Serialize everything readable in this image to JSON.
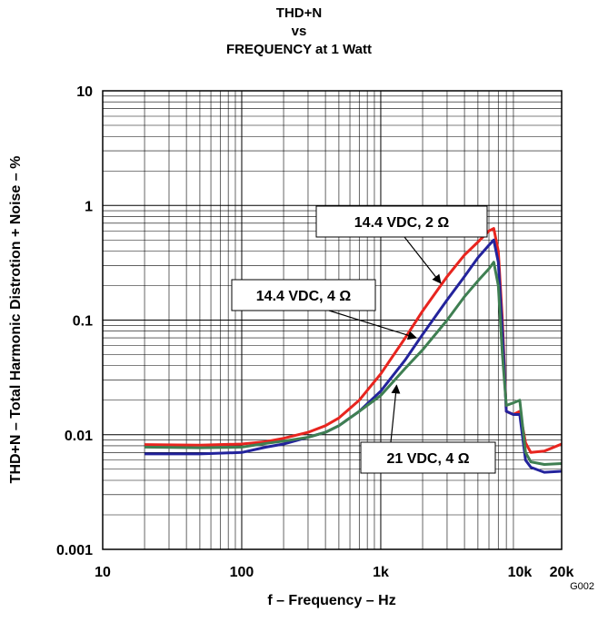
{
  "title_lines": [
    "THD+N",
    "vs",
    "FREQUENCY at 1 Watt"
  ],
  "figure_id": "G002",
  "chart_data": {
    "type": "line",
    "title": "THD+N vs FREQUENCY at 1 Watt",
    "xlabel": "f – Frequency – Hz",
    "ylabel": "THD+N – Total Harmonic Distrotion + Noise – %",
    "xscale": "log",
    "yscale": "log",
    "xlim": [
      10,
      20000
    ],
    "ylim": [
      0.001,
      10
    ],
    "grid": true,
    "x_tick_labels": [
      {
        "value": 10,
        "label": "10"
      },
      {
        "value": 100,
        "label": "100"
      },
      {
        "value": 1000,
        "label": "1k"
      },
      {
        "value": 10000,
        "label": "10k"
      },
      {
        "value": 20000,
        "label": "20k"
      }
    ],
    "y_tick_labels": [
      {
        "value": 0.001,
        "label": "0.001"
      },
      {
        "value": 0.01,
        "label": "0.01"
      },
      {
        "value": 0.1,
        "label": "0.1"
      },
      {
        "value": 1,
        "label": "1"
      },
      {
        "value": 10,
        "label": "10"
      }
    ],
    "series": [
      {
        "name": "14.4 VDC, 2 Ω",
        "color": "#e8251f",
        "x": [
          20,
          50,
          100,
          150,
          200,
          300,
          400,
          500,
          700,
          1000,
          1500,
          2000,
          3000,
          4000,
          5000,
          6000,
          6500,
          7000,
          7500,
          8000,
          9000,
          10000,
          11000,
          12000,
          15000,
          20000
        ],
        "y": [
          0.0082,
          0.0081,
          0.0083,
          0.0087,
          0.0093,
          0.0105,
          0.012,
          0.014,
          0.02,
          0.034,
          0.07,
          0.12,
          0.24,
          0.37,
          0.48,
          0.6,
          0.63,
          0.4,
          0.1,
          0.016,
          0.015,
          0.016,
          0.0085,
          0.007,
          0.0072,
          0.0083
        ]
      },
      {
        "name": "14.4 VDC, 4 Ω",
        "color": "#23239c",
        "x": [
          20,
          50,
          100,
          150,
          200,
          300,
          400,
          500,
          700,
          1000,
          1500,
          2000,
          3000,
          4000,
          5000,
          6000,
          6500,
          7000,
          7500,
          8000,
          9000,
          10000,
          11000,
          12000,
          15000,
          20000
        ],
        "y": [
          0.0068,
          0.0068,
          0.007,
          0.0078,
          0.0083,
          0.0095,
          0.0105,
          0.012,
          0.016,
          0.024,
          0.045,
          0.075,
          0.15,
          0.24,
          0.35,
          0.45,
          0.5,
          0.32,
          0.08,
          0.016,
          0.015,
          0.015,
          0.006,
          0.0052,
          0.0047,
          0.0048
        ]
      },
      {
        "name": "21 VDC, 4 Ω",
        "color": "#3f7f52",
        "x": [
          20,
          50,
          100,
          150,
          200,
          300,
          400,
          500,
          700,
          1000,
          1500,
          2000,
          3000,
          4000,
          5000,
          6000,
          6500,
          7000,
          7500,
          8000,
          9000,
          10000,
          11000,
          12000,
          15000,
          20000
        ],
        "y": [
          0.0078,
          0.0077,
          0.0078,
          0.0084,
          0.0088,
          0.0095,
          0.0105,
          0.012,
          0.016,
          0.022,
          0.038,
          0.055,
          0.1,
          0.16,
          0.22,
          0.28,
          0.32,
          0.2,
          0.05,
          0.018,
          0.019,
          0.02,
          0.007,
          0.0058,
          0.0055,
          0.0056
        ]
      }
    ],
    "annotations": [
      {
        "text": "14.4 VDC, 2 Ω",
        "series": 0,
        "points_to": [
          2700,
          0.21
        ]
      },
      {
        "text": "14.4 VDC, 4 Ω",
        "series": 1,
        "points_to": [
          1800,
          0.07
        ]
      },
      {
        "text": "21 VDC, 4 Ω",
        "series": 2,
        "points_to": [
          1300,
          0.027
        ]
      }
    ]
  }
}
